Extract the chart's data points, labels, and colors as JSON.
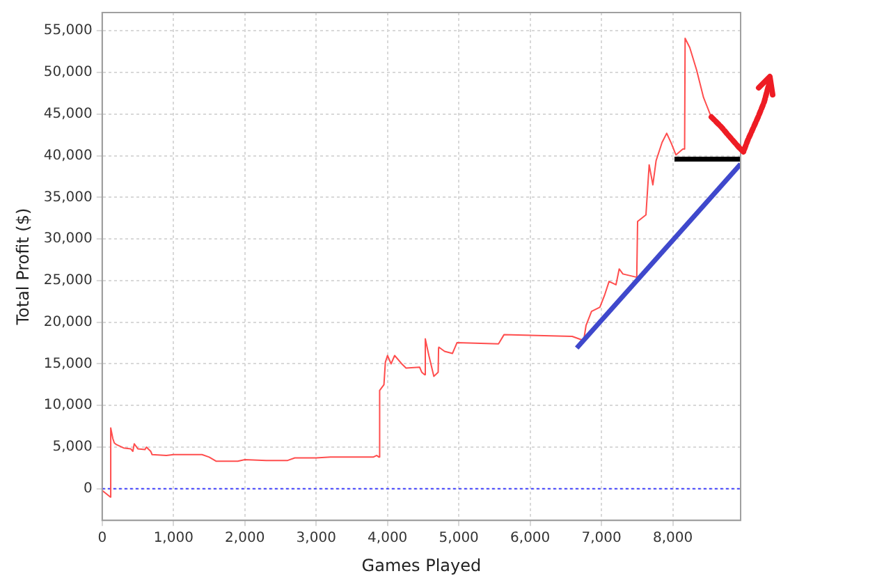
{
  "chart_data": {
    "type": "line",
    "xlabel": "Games Played",
    "ylabel": "Total Profit ($)",
    "x": [
      0,
      116,
      120,
      150,
      170,
      200,
      300,
      400,
      430,
      450,
      500,
      600,
      620,
      680,
      700,
      900,
      1000,
      1400,
      1500,
      1600,
      1900,
      2000,
      2300,
      2600,
      2700,
      3000,
      3200,
      3800,
      3850,
      3880,
      3890,
      3950,
      3970,
      4000,
      4050,
      4100,
      4200,
      4260,
      4450,
      4480,
      4520,
      4530,
      4580,
      4650,
      4710,
      4716,
      4720,
      4800,
      4910,
      4975,
      5556,
      5633,
      6589,
      6750,
      6783,
      6860,
      6977,
      7041,
      7106,
      7203,
      7248,
      7300,
      7494,
      7506,
      7623,
      7668,
      7720,
      7765,
      7849,
      7914,
      7978,
      8043,
      8140,
      8165,
      8172,
      8237,
      8333,
      8430,
      8527
    ],
    "series": [
      {
        "color": "#ff4d4d",
        "values": [
          -200,
          -1000,
          7300,
          6000,
          5500,
          5300,
          4900,
          4800,
          4500,
          5400,
          4800,
          4700,
          5000,
          4500,
          4100,
          4000,
          4100,
          4100,
          3800,
          3300,
          3300,
          3500,
          3400,
          3400,
          3700,
          3700,
          3800,
          3800,
          4000,
          3800,
          11800,
          12500,
          15200,
          16000,
          15000,
          16000,
          15000,
          14500,
          14600,
          14000,
          13700,
          18000,
          16000,
          13500,
          14000,
          16900,
          17000,
          16500,
          16250,
          17550,
          17400,
          18500,
          18300,
          17800,
          19600,
          21300,
          21800,
          23200,
          24900,
          24500,
          26400,
          25800,
          25400,
          32100,
          32900,
          38900,
          36500,
          39400,
          41600,
          42700,
          41500,
          40100,
          40800,
          40800,
          54100,
          53000,
          50300,
          47000,
          44900
        ]
      },
      {
        "type": "line",
        "color": "#3f48cc",
        "x": [
          6653,
          8950
        ],
        "values": [
          16900,
          39000
        ]
      },
      {
        "type": "line",
        "color": "#000000",
        "x": [
          8023,
          8950
        ],
        "values": [
          39600,
          39600
        ]
      }
    ],
    "xlim": [
      0,
      8950
    ],
    "ylim": [
      -3800,
      57200
    ],
    "xticks": [
      {
        "value": 0,
        "label": "0"
      },
      {
        "value": 1000,
        "label": "1,000"
      },
      {
        "value": 2000,
        "label": "2,000"
      },
      {
        "value": 3000,
        "label": "3,000"
      },
      {
        "value": 4000,
        "label": "4,000"
      },
      {
        "value": 5000,
        "label": "5,000"
      },
      {
        "value": 6000,
        "label": "6,000"
      },
      {
        "value": 7000,
        "label": "7,000"
      },
      {
        "value": 8000,
        "label": "8,000"
      }
    ],
    "yticks": [
      {
        "value": 0,
        "label": "0"
      },
      {
        "value": 5000,
        "label": "5,000"
      },
      {
        "value": 10000,
        "label": "10,000"
      },
      {
        "value": 15000,
        "label": "15,000"
      },
      {
        "value": 20000,
        "label": "20,000"
      },
      {
        "value": 25000,
        "label": "25,000"
      },
      {
        "value": 30000,
        "label": "30,000"
      },
      {
        "value": 35000,
        "label": "35,000"
      },
      {
        "value": 40000,
        "label": "40,000"
      },
      {
        "value": 45000,
        "label": "45,000"
      },
      {
        "value": 50000,
        "label": "50,000"
      },
      {
        "value": 55000,
        "label": "55,000"
      }
    ],
    "ref_lines": [
      {
        "axis": "y",
        "value": 0,
        "color": "#4040ff",
        "line_style": "dotted"
      }
    ],
    "grid": true,
    "legend": false,
    "marker": "none"
  }
}
